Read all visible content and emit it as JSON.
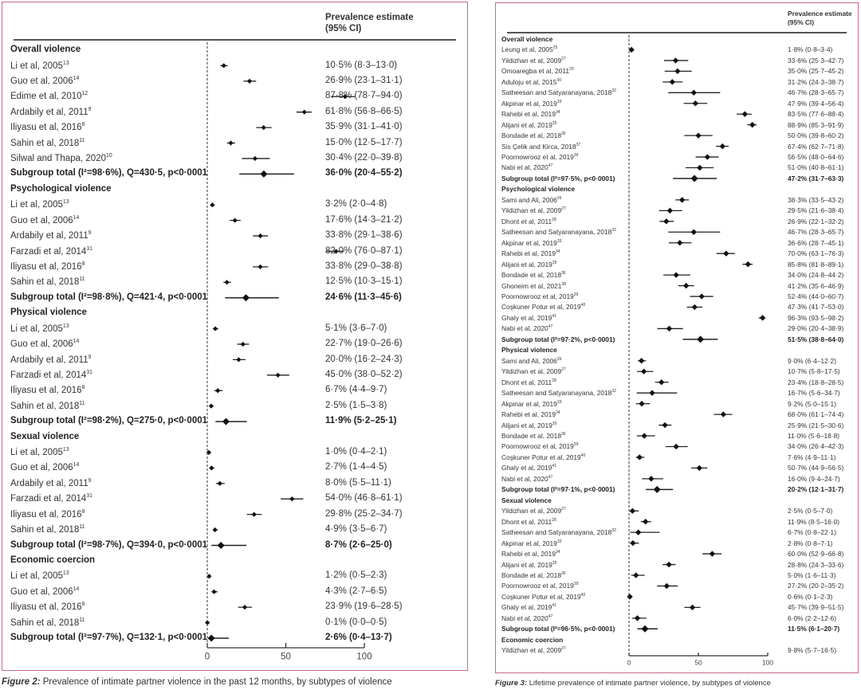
{
  "chart_data": [
    {
      "type": "forest",
      "title": "Figure 2: Prevalence of intimate partner violence in the past 12 months, by subtypes of violence",
      "caption_prefix": "Figure 2:",
      "caption_text": "Prevalence of intimate partner violence in the past 12 months, by subtypes of violence",
      "column_header": [
        "Prevalence estimate",
        "(95% CI)"
      ],
      "xlim": [
        0,
        100
      ],
      "xticks": [
        "0",
        "50",
        "100"
      ],
      "groups": [
        {
          "name": "Overall violence",
          "studies": [
            [
              "Li et al, 2005",
              "13",
              10.5,
              8.3,
              13.0
            ],
            [
              "Guo et al, 2006",
              "14",
              26.9,
              23.1,
              31.1
            ],
            [
              "Edime et al, 2010",
              "12",
              87.8,
              78.7,
              94.0
            ],
            [
              "Ardabily et al, 2011",
              "9",
              61.8,
              56.8,
              66.5
            ],
            [
              "Iliyasu et al, 2016",
              "8",
              35.9,
              31.1,
              41.0
            ],
            [
              "Sahin et al, 2018",
              "11",
              15.0,
              12.5,
              17.7
            ],
            [
              "Silwal and Thapa, 2020",
              "10",
              30.4,
              22.0,
              39.8
            ]
          ],
          "subtotal": {
            "label": "Subgroup total (I²=98·6%), Q=430·5, p<0·0001",
            "values": [
              36.0,
              20.4,
              55.2
            ]
          }
        },
        {
          "name": "Psychological violence",
          "studies": [
            [
              "Li et al, 2005",
              "13",
              3.2,
              2.0,
              4.8
            ],
            [
              "Guo et al, 2006",
              "14",
              17.6,
              14.3,
              21.2
            ],
            [
              "Ardabily et al, 2011",
              "9",
              33.8,
              29.1,
              38.6
            ],
            [
              "Farzadi et al, 2014",
              "31",
              82.0,
              76.0,
              87.1
            ],
            [
              "Iliyasu et al, 2016",
              "8",
              33.8,
              29.0,
              38.8
            ],
            [
              "Sahin et al, 2018",
              "11",
              12.5,
              10.3,
              15.1
            ]
          ],
          "subtotal": {
            "label": "Subgroup total (I²=98·8%), Q=421·4, p<0·0001",
            "values": [
              24.6,
              11.3,
              45.6
            ]
          }
        },
        {
          "name": "Physical violence",
          "studies": [
            [
              "Li et al, 2005",
              "13",
              5.1,
              3.6,
              7.0
            ],
            [
              "Guo et al, 2006",
              "14",
              22.7,
              19.0,
              26.6
            ],
            [
              "Ardabily et al, 2011",
              "9",
              20.0,
              16.2,
              24.3
            ],
            [
              "Farzadi et al, 2014",
              "31",
              45.0,
              38.0,
              52.2
            ],
            [
              "Iliyasu et al, 2016",
              "8",
              6.7,
              4.4,
              9.7
            ],
            [
              "Sahin et al, 2018",
              "11",
              2.5,
              1.5,
              3.8
            ]
          ],
          "subtotal": {
            "label": "Subgroup total (I²=98·2%), Q=275·0, p<0·0001",
            "values": [
              11.9,
              5.2,
              25.1
            ]
          }
        },
        {
          "name": "Sexual violence",
          "studies": [
            [
              "Li et al, 2005",
              "13",
              1.0,
              0.4,
              2.1
            ],
            [
              "Guo et al, 2006",
              "14",
              2.7,
              1.4,
              4.5
            ],
            [
              "Ardabily et al, 2011",
              "9",
              8.0,
              5.5,
              11.1
            ],
            [
              "Farzadi et al, 2014",
              "31",
              54.0,
              46.8,
              61.1
            ],
            [
              "Iliyasu et al, 2016",
              "8",
              29.8,
              25.2,
              34.7
            ],
            [
              "Sahin et al, 2018",
              "11",
              4.9,
              3.5,
              6.7
            ]
          ],
          "subtotal": {
            "label": "Subgroup total (I²=98·7%), Q=394·0, p<0·0001",
            "values": [
              8.7,
              2.6,
              25.0
            ]
          }
        },
        {
          "name": "Economic coercion",
          "studies": [
            [
              "Li et al, 2005",
              "13",
              1.2,
              0.5,
              2.3
            ],
            [
              "Guo et al, 2006",
              "14",
              4.3,
              2.7,
              6.5
            ],
            [
              "Iliyasu et al, 2016",
              "8",
              23.9,
              19.6,
              28.5
            ],
            [
              "Sahin et al, 2018",
              "11",
              0.1,
              0.0,
              0.5
            ]
          ],
          "subtotal": {
            "label": "Subgroup total (I²=97·7%), Q=132·1, p<0·0001",
            "values": [
              2.6,
              0.4,
              13.7
            ]
          }
        }
      ]
    },
    {
      "type": "forest",
      "title": "Figure 3: Lifetime prevalence of intimate partner violence, by subtypes of violence",
      "caption_prefix": "Figure 3:",
      "caption_text": "Lifetime prevalence of intimate partner violence, by subtypes of violence",
      "column_header": [
        "Prevalence estimate",
        "(95% CI)"
      ],
      "xlim": [
        0,
        100
      ],
      "xticks": [
        "0",
        "50",
        "100"
      ],
      "groups": [
        {
          "name": "Overall violence",
          "studies": [
            [
              "Leung et al, 2005",
              "25",
              1.8,
              0.8,
              3.4
            ],
            [
              "Yildizhan et al, 2009",
              "27",
              33.6,
              25.3,
              42.7
            ],
            [
              "Omoaregba et al, 2011",
              "29",
              35.0,
              25.7,
              45.2
            ],
            [
              "Aduloju et al, 2015",
              "30",
              31.2,
              24.3,
              38.7
            ],
            [
              "Satheesan and Satyaranayana, 2018",
              "32",
              46.7,
              28.3,
              65.7
            ],
            [
              "Akpinar et al, 2019",
              "33",
              47.9,
              39.4,
              56.4
            ],
            [
              "Rahebi et al, 2019",
              "34",
              83.5,
              77.6,
              88.4
            ],
            [
              "Alijani et al, 2019",
              "35",
              88.9,
              85.3,
              91.9
            ],
            [
              "Bondade et al, 2018",
              "36",
              50.0,
              39.8,
              60.2
            ],
            [
              "Sis Çelik and Kirca, 2018",
              "37",
              67.4,
              62.7,
              71.8
            ],
            [
              "Poornowrooz et al, 2019",
              "39",
              56.5,
              48.0,
              64.6
            ],
            [
              "Nabi et al, 2020",
              "47",
              51.0,
              40.8,
              61.1
            ]
          ],
          "subtotal": {
            "label": "Subgroup total (I²=97·5%, p<0·0001)",
            "values": [
              47.2,
              31.7,
              63.3
            ]
          }
        },
        {
          "name": "Psychological violence",
          "studies": [
            [
              "Sami and Ali, 2006",
              "26",
              38.3,
              33.5,
              43.2
            ],
            [
              "Yildizhan et al, 2009",
              "27",
              29.5,
              21.6,
              38.4
            ],
            [
              "Dhont et al, 2011",
              "28",
              26.9,
              22.1,
              32.2
            ],
            [
              "Satheesan and Satyaranayana, 2018",
              "32",
              46.7,
              28.3,
              65.7
            ],
            [
              "Akpinar et al, 2019",
              "33",
              36.6,
              28.7,
              45.1
            ],
            [
              "Rahebi et al, 2019",
              "34",
              70.0,
              63.1,
              76.3
            ],
            [
              "Alijani et al, 2019",
              "35",
              85.8,
              81.8,
              89.1
            ],
            [
              "Bondade et al, 2018",
              "36",
              34.0,
              24.8,
              44.2
            ],
            [
              "Ghoneim et al, 2021",
              "38",
              41.2,
              35.6,
              46.9
            ],
            [
              "Poornowrooz et al, 2019",
              "39",
              52.4,
              44.0,
              60.7
            ],
            [
              "Coşkuner Potur et al, 2019",
              "40",
              47.3,
              41.7,
              53.0
            ],
            [
              "Ghaly et al, 2019",
              "41",
              96.3,
              93.5,
              98.2
            ],
            [
              "Nabi et al, 2020",
              "47",
              29.0,
              20.4,
              38.9
            ]
          ],
          "subtotal": {
            "label": "Subgroup total (I²=97·2%, p<0·0001)",
            "values": [
              51.5,
              38.8,
              64.0
            ]
          }
        },
        {
          "name": "Physical violence",
          "studies": [
            [
              "Sami and Ali, 2006",
              "26",
              9.0,
              6.4,
              12.2
            ],
            [
              "Yildizhan et al, 2009",
              "27",
              10.7,
              5.8,
              17.5
            ],
            [
              "Dhont et al, 2011",
              "28",
              23.4,
              18.8,
              28.5
            ],
            [
              "Satheesan and Satyaranayana, 2018",
              "32",
              16.7,
              5.6,
              34.7
            ],
            [
              "Akpinar et al, 2019",
              "33",
              9.2,
              5.0,
              15.1
            ],
            [
              "Rahebi et al, 2019",
              "34",
              68.0,
              61.1,
              74.4
            ],
            [
              "Alijani et al, 2019",
              "35",
              25.9,
              21.5,
              30.6
            ],
            [
              "Bondade et al, 2018",
              "36",
              11.0,
              5.6,
              18.8
            ],
            [
              "Poornowrooz et al, 2019",
              "39",
              34.0,
              26.4,
              42.3
            ],
            [
              "Coşkuner Potur et al, 2019",
              "40",
              7.6,
              4.9,
              11.1
            ],
            [
              "Ghaly et al, 2019",
              "41",
              50.7,
              44.9,
              56.5
            ],
            [
              "Nabi et al, 2020",
              "47",
              16.0,
              9.4,
              24.7
            ]
          ],
          "subtotal": {
            "label": "Subgroup total (I²=97·1%, p<0·0001)",
            "values": [
              20.2,
              12.1,
              31.7
            ]
          }
        },
        {
          "name": "Sexual violence",
          "studies": [
            [
              "Yildizhan et al, 2009",
              "27",
              2.5,
              0.5,
              7.0
            ],
            [
              "Dhont et al, 2011",
              "28",
              11.9,
              8.5,
              16.0
            ],
            [
              "Satheesan and Satyaranayana, 2018",
              "32",
              6.7,
              0.8,
              22.1
            ],
            [
              "Akpinar et al, 2019",
              "33",
              2.8,
              0.8,
              7.1
            ],
            [
              "Rahebi et al, 2019",
              "34",
              60.0,
              52.9,
              66.8
            ],
            [
              "Alijani et al, 2019",
              "35",
              28.8,
              24.3,
              33.6
            ],
            [
              "Bondade et al, 2018",
              "36",
              5.0,
              1.6,
              11.3
            ],
            [
              "Poornowrooz et al, 2019",
              "39",
              27.2,
              20.2,
              35.2
            ],
            [
              "Coşkuner Potur et al, 2019",
              "40",
              0.6,
              0.1,
              2.3
            ],
            [
              "Ghaly et al, 2019",
              "41",
              45.7,
              39.9,
              51.5
            ],
            [
              "Nabi et al, 2020",
              "47",
              6.0,
              2.2,
              12.6
            ]
          ],
          "subtotal": {
            "label": "Subgroup total (I²=96·5%, p<0·0001)",
            "values": [
              11.5,
              6.1,
              20.7
            ]
          }
        },
        {
          "name": "Economic coercion",
          "studies": [
            [
              "Yildizhan et al, 2009",
              "27",
              9.8,
              5.7,
              16.5,
              "no-marker"
            ]
          ],
          "subtotal": null
        }
      ]
    }
  ]
}
